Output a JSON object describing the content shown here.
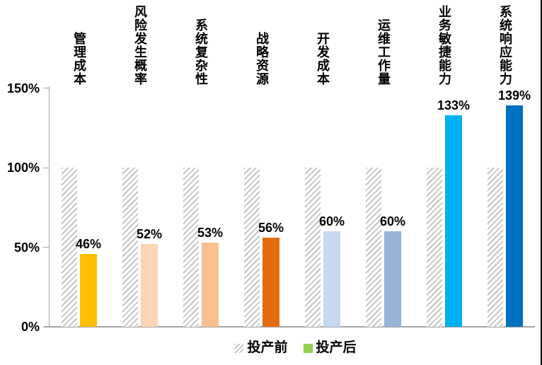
{
  "chart_data": {
    "type": "bar",
    "title": "",
    "xlabel": "",
    "ylabel": "",
    "categories": [
      "管理成本",
      "风险发生概率",
      "系统复杂性",
      "战略资源",
      "开发成本",
      "运维工作量",
      "业务敏捷能力",
      "系统响应能力"
    ],
    "series": [
      {
        "name": "投产前",
        "values": [
          100,
          100,
          100,
          100,
          100,
          100,
          100,
          100
        ],
        "fill": "hatched-gray"
      },
      {
        "name": "投产后",
        "values": [
          46,
          52,
          53,
          56,
          60,
          60,
          133,
          139
        ],
        "bar_colors": [
          "#FFC000",
          "#FCD5B4",
          "#FABF8F",
          "#E36C0A",
          "#C6D9F1",
          "#95B3D7",
          "#00B0F0",
          "#0070C0"
        ]
      }
    ],
    "data_labels": [
      "46%",
      "52%",
      "53%",
      "56%",
      "60%",
      "60%",
      "133%",
      "139%"
    ],
    "y_axis": {
      "min": 0,
      "max": 150,
      "ticks": [
        {
          "value": 150,
          "label": "150%"
        },
        {
          "value": 100,
          "label": "100%"
        },
        {
          "value": 50,
          "label": "50%"
        },
        {
          "value": 0,
          "label": "0%"
        }
      ]
    },
    "grid": "off",
    "legend": {
      "position": "bottom",
      "items": [
        {
          "label": "投产前",
          "swatch": "hatched-gray"
        },
        {
          "label": "投产后",
          "swatch": "#92D050"
        }
      ]
    },
    "colors": {
      "hatch_stripe": "#C6C6C6",
      "axis": "#A6A6A6",
      "text": "#000000",
      "legend_after_swatch": "#92D050"
    }
  }
}
